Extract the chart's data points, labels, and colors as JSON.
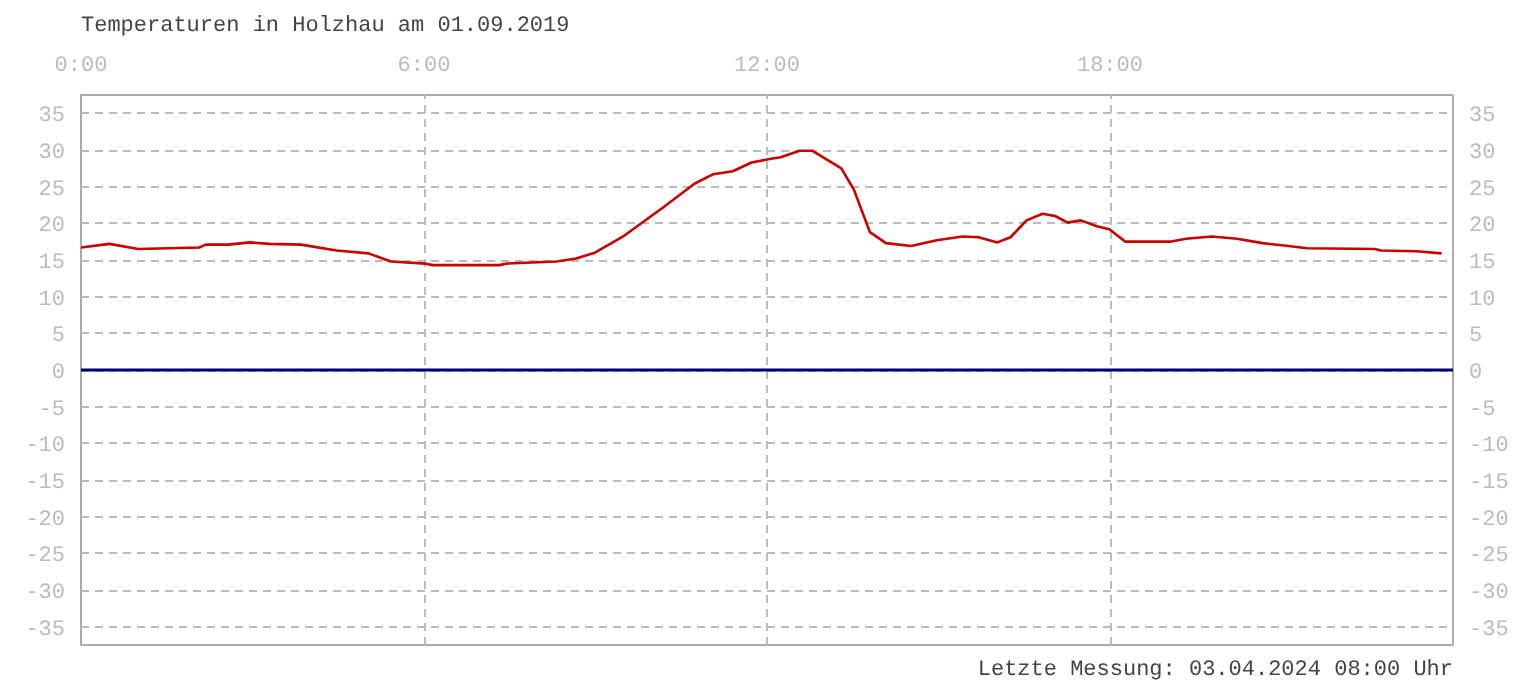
{
  "chart_data": {
    "type": "line",
    "title": "Temperaturen in Holzhau am 01.09.2019",
    "annotations": [
      "Letzte Messung: 03.04.2024 08:00 Uhr"
    ],
    "x": [
      0,
      0.5,
      1.0,
      2.07,
      2.18,
      2.57,
      2.96,
      3.3,
      3.85,
      4.47,
      5.03,
      5.42,
      6.03,
      6.15,
      7.32,
      7.43,
      8.32,
      8.66,
      8.99,
      9.5,
      10.17,
      10.73,
      11.06,
      11.4,
      11.73,
      12.07,
      12.24,
      12.57,
      12.79,
      13.3,
      13.52,
      13.8,
      14.08,
      14.52,
      14.97,
      15.42,
      15.7,
      16.03,
      16.26,
      16.54,
      16.82,
      17.04,
      17.26,
      17.49,
      17.77,
      17.99,
      18.27,
      19.05,
      19.33,
      19.78,
      20.22,
      20.67,
      21.12,
      21.45,
      22.63,
      22.74,
      23.36,
      23.8
    ],
    "series": [
      {
        "color": "#cc0000",
        "values": [
          16.7,
          17.2,
          16.5,
          16.7,
          17.1,
          17.1,
          17.4,
          17.2,
          17.1,
          16.3,
          15.9,
          14.8,
          14.5,
          14.3,
          14.3,
          14.5,
          14.8,
          15.2,
          16.0,
          18.3,
          22.1,
          25.4,
          26.7,
          27.1,
          28.3,
          28.8,
          29.0,
          29.9,
          29.9,
          27.5,
          24.6,
          18.8,
          17.3,
          16.9,
          17.7,
          18.2,
          18.1,
          17.4,
          18.1,
          20.4,
          21.3,
          21.0,
          20.1,
          20.4,
          19.6,
          19.2,
          17.5,
          17.5,
          17.9,
          18.2,
          17.9,
          17.3,
          16.9,
          16.6,
          16.5,
          16.3,
          16.2,
          15.9
        ]
      }
    ],
    "xlim": [
      0,
      24
    ],
    "xticks": [
      {
        "value": 0,
        "label": "0:00"
      },
      {
        "value": 6,
        "label": "6:00"
      },
      {
        "value": 12,
        "label": "12:00"
      },
      {
        "value": 18,
        "label": "18:00"
      }
    ],
    "ylim": [
      -37.5,
      37.5
    ],
    "yticks": [
      -35,
      -30,
      -25,
      -20,
      -15,
      -10,
      -5,
      0,
      5,
      10,
      15,
      20,
      25,
      30,
      35
    ],
    "y2lim": [
      -37.5,
      37.5
    ],
    "y2ticks": [
      -35,
      -30,
      -25,
      -20,
      -15,
      -10,
      -5,
      0,
      5,
      10,
      15,
      20,
      25,
      30,
      35
    ],
    "ref_lines": [
      {
        "axis": "y",
        "value": 0,
        "color": "#000080"
      }
    ],
    "grid": true,
    "line_style": "solid"
  }
}
